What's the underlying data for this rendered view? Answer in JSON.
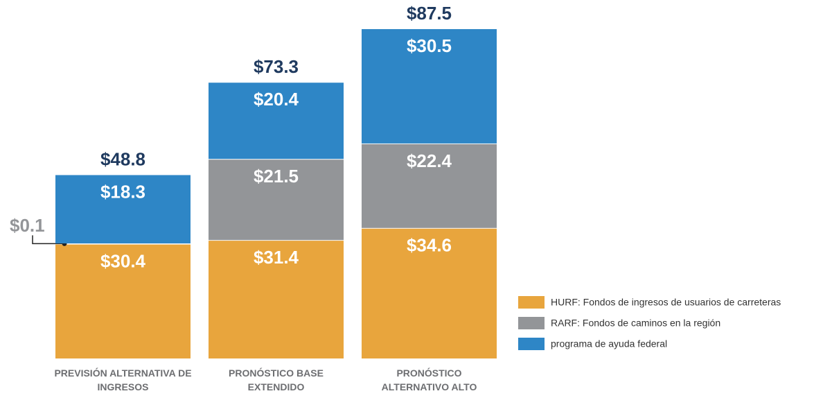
{
  "chart_data": {
    "type": "stacked_bar",
    "categories": [
      "PREVISIÓN ALTERNATIVA DE INGRESOS",
      "PRONÓSTICO BASE EXTENDIDO",
      "PRONÓSTICO ALTERNATIVO ALTO"
    ],
    "series": [
      {
        "name": "HURF: Fondos de ingresos de usuarios de carreteras",
        "color": "#e8a53d",
        "values": [
          30.4,
          31.4,
          34.6
        ],
        "value_labels": [
          "$30.4",
          "$31.4",
          "$34.6"
        ]
      },
      {
        "name": "RARF: Fondos de caminos en la región",
        "color": "#939598",
        "values": [
          0.1,
          21.5,
          22.4
        ],
        "value_labels": [
          "$0.1",
          "$21.5",
          "$22.4"
        ]
      },
      {
        "name": "programa de ayuda federal",
        "color": "#2e86c6",
        "values": [
          18.3,
          20.4,
          30.5
        ],
        "value_labels": [
          "$18.3",
          "$20.4",
          "$30.5"
        ]
      }
    ],
    "totals": [
      48.8,
      73.3,
      87.5
    ],
    "total_labels": [
      "$48.8",
      "$73.3",
      "$87.5"
    ],
    "legend": "bottom-right"
  }
}
